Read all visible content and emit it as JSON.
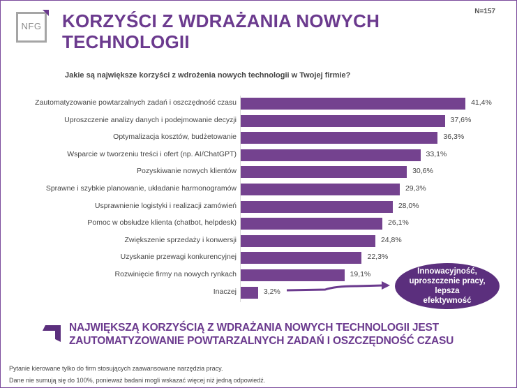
{
  "header": {
    "logo_text": "NFG",
    "title_line1": "KORZYŚCI Z WDRAŻANIA NOWYCH",
    "title_line2": "TECHNOLOGII",
    "sample_size": "N=157"
  },
  "question": "Jakie są największe korzyści z wdrożenia nowych technologii w Twojej firmie?",
  "chart_data": {
    "type": "bar",
    "orientation": "horizontal",
    "title": "Jakie są największe korzyści z wdrożenia nowych technologii w Twojej firmie?",
    "xlabel": "",
    "ylabel": "",
    "unit": "%",
    "xlim": [
      0,
      45
    ],
    "grid": false,
    "legend": null,
    "bar_color": "#74428f",
    "categories": [
      "Zautomatyzowanie powtarzalnych zadań i oszczędność czasu",
      "Uproszczenie analizy danych i podejmowanie decyzji",
      "Optymalizacja kosztów, budżetowanie",
      "Wsparcie w tworzeniu treści i ofert (np. AI/ChatGPT)",
      "Pozyskiwanie nowych klientów",
      "Sprawne i szybkie planowanie, układanie harmonogramów",
      "Usprawnienie logistyki i realizacji zamówień",
      "Pomoc w obsłudze klienta (chatbot, helpdesk)",
      "Zwiększenie sprzedaży i konwersji",
      "Uzyskanie przewagi konkurencyjnej",
      "Rozwinięcie firmy na nowych rynkach",
      "Inaczej"
    ],
    "values": [
      41.4,
      37.6,
      36.3,
      33.1,
      30.6,
      29.3,
      28.0,
      26.1,
      24.8,
      22.3,
      19.1,
      3.2
    ],
    "value_labels": [
      "41,4%",
      "37,6%",
      "36,3%",
      "33,1%",
      "30,6%",
      "29,3%",
      "28,0%",
      "26,1%",
      "24,8%",
      "22,3%",
      "19,1%",
      "3,2%"
    ],
    "annotations": [
      {
        "target": "Inaczej",
        "text": "Innowacyjność, uproszczenie pracy, lepsza efektywność"
      }
    ]
  },
  "callout": {
    "line1": "Innowacyjność,",
    "line2": "uproszczenie pracy, lepsza",
    "line3": "efektywność"
  },
  "takeaway": {
    "line1": "NAJWIĘKSZĄ KORZYŚCIĄ Z WDRAŻANIA NOWYCH TECHNOLOGII JEST",
    "line2": "ZAUTOMATYZOWANIE POWTARZALNYCH ZADAŃ I OSZCZĘDNOŚĆ CZASU"
  },
  "footnotes": {
    "note1": "Pytanie kierowane tylko do firm stosujących zaawansowane narzędzia pracy.",
    "note2": "Dane nie sumują się do 100%, ponieważ badani mogli wskazać więcej niż jedną odpowiedź."
  },
  "colors": {
    "brand_purple": "#6b3a8e",
    "bar": "#74428f",
    "bubble": "#5b2f7d",
    "logo_gray": "#a5a5a5"
  }
}
